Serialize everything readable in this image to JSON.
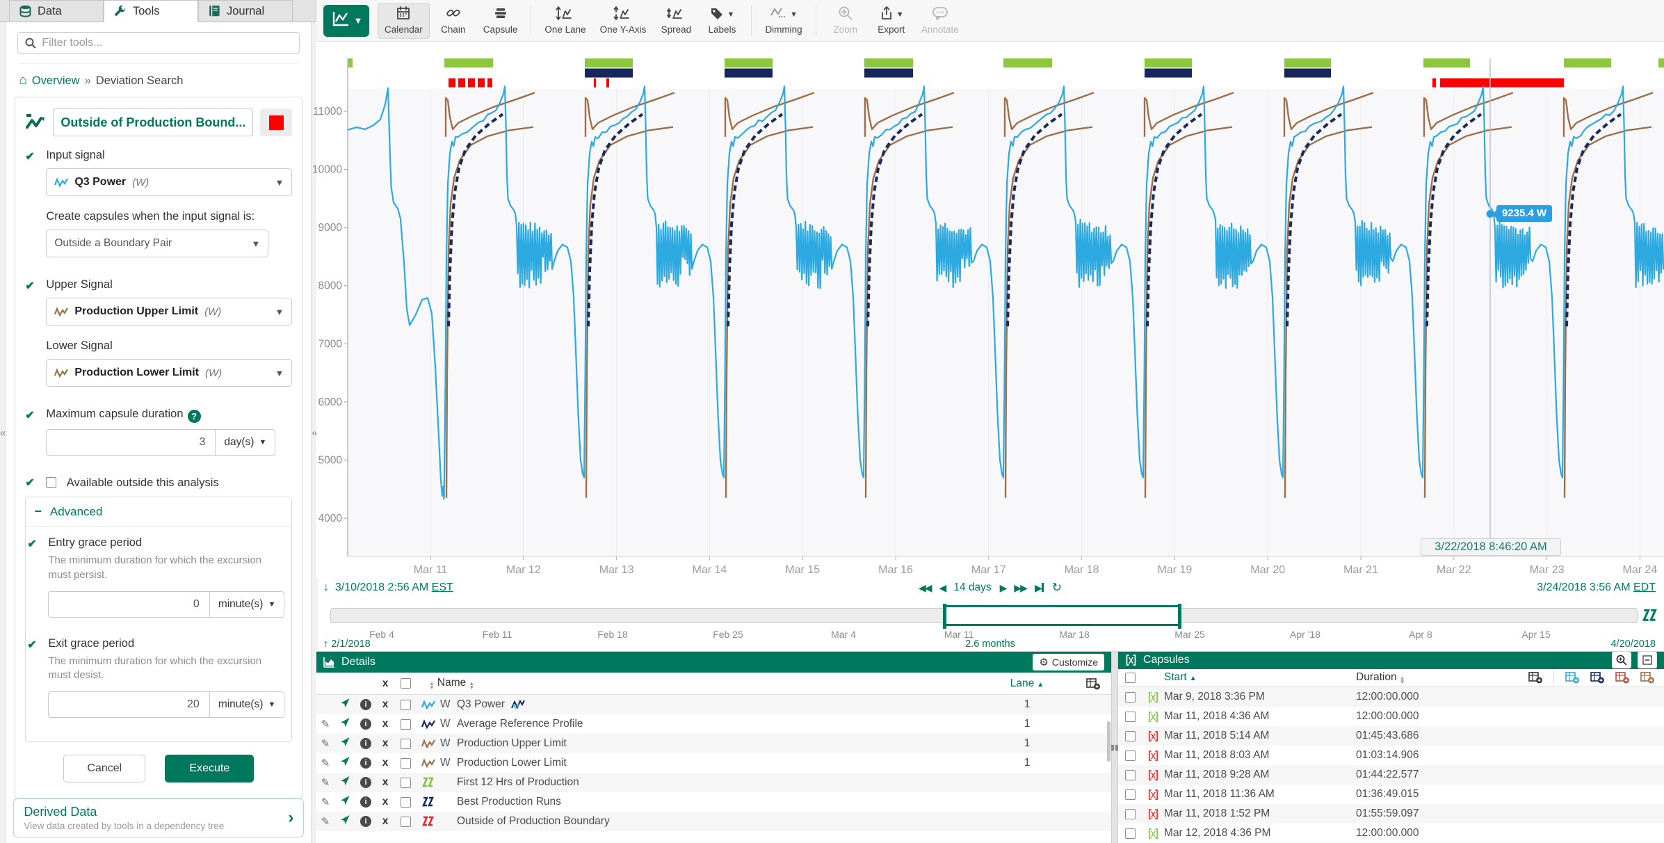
{
  "sidebar": {
    "tabs": [
      {
        "label": "Data",
        "icon": "database-icon"
      },
      {
        "label": "Tools",
        "icon": "wrench-icon"
      },
      {
        "label": "Journal",
        "icon": "journal-icon"
      }
    ],
    "filter_placeholder": "Filter tools...",
    "breadcrumb": {
      "link": "Overview",
      "separator": "»",
      "current": "Deviation Search"
    },
    "tool": {
      "title": "Outside of Production Bound...",
      "color_swatch": "#ff0000",
      "input_signal": {
        "label": "Input signal",
        "value": "Q3 Power",
        "unit": "(W)",
        "color": "#2AA9E0"
      },
      "condition": {
        "label": "Create capsules when the input signal is:",
        "value": "Outside a Boundary Pair"
      },
      "upper_signal": {
        "label": "Upper Signal",
        "value": "Production Upper Limit",
        "unit": "(W)",
        "color": "#9C6F49"
      },
      "lower_signal": {
        "label": "Lower Signal",
        "value": "Production Lower Limit",
        "unit": "(W)",
        "color": "#9C6F49"
      },
      "max_duration": {
        "label": "Maximum capsule duration",
        "value": "3",
        "unit": "day(s)"
      },
      "available_outside_label": "Available outside this analysis",
      "advanced": {
        "label": "Advanced",
        "entry_grace": {
          "label": "Entry grace period",
          "description": "The minimum duration for which the excursion must persist.",
          "value": "0",
          "unit": "minute(s)"
        },
        "exit_grace": {
          "label": "Exit grace period",
          "description": "The minimum duration for which the excursion must desist.",
          "value": "20",
          "unit": "minute(s)"
        }
      },
      "cancel_label": "Cancel",
      "execute_label": "Execute"
    },
    "derived_data": {
      "title": "Derived Data",
      "subtitle": "View data created by tools in a dependency tree"
    }
  },
  "toolbar": {
    "buttons": [
      {
        "label": "Calendar",
        "icon": "calendar",
        "active": true
      },
      {
        "label": "Chain",
        "icon": "chain"
      },
      {
        "label": "Capsule",
        "icon": "capsule"
      },
      {
        "sep": true
      },
      {
        "label": "One Lane",
        "icon": "onelane"
      },
      {
        "label": "One Y-Axis",
        "icon": "oneyaxis"
      },
      {
        "label": "Spread",
        "icon": "spread"
      },
      {
        "label": "Labels",
        "icon": "labels",
        "caret": true
      },
      {
        "sep": true
      },
      {
        "label": "Dimming",
        "icon": "dimming",
        "caret": true
      },
      {
        "sep": true
      },
      {
        "label": "Zoom",
        "icon": "zoom",
        "disabled": true
      },
      {
        "label": "Export",
        "icon": "export",
        "caret": true
      },
      {
        "label": "Annotate",
        "icon": "annotate",
        "disabled": true
      }
    ]
  },
  "chart": {
    "y_ticks": [
      "11000",
      "10000",
      "9000",
      "8000",
      "7000",
      "6000",
      "5000",
      "4000"
    ],
    "x_ticks": [
      "Mar 11",
      "Mar 12",
      "Mar 13",
      "Mar 14",
      "Mar 15",
      "Mar 16",
      "Mar 17",
      "Mar 18",
      "Mar 19",
      "Mar 20",
      "Mar 21",
      "Mar 22",
      "Mar 23",
      "Mar 24"
    ],
    "cursor": {
      "value_label": "9235.4 W",
      "timestamp": "3/22/2018 8:46:20 AM"
    },
    "series_colors": {
      "q3_power": "#2BA9E0",
      "average_reference_profile": "#182A5E",
      "production_limits": "#9C6F49"
    },
    "capsule_lanes": {
      "green": [
        [
          46,
          52
        ],
        [
          184,
          254
        ],
        [
          386,
          455
        ],
        [
          587,
          656
        ],
        [
          788,
          858
        ],
        [
          988,
          1058
        ],
        [
          1191,
          1259
        ],
        [
          1392,
          1459
        ],
        [
          1592,
          1659
        ],
        [
          1794,
          1862
        ],
        [
          1930,
          1938
        ]
      ],
      "navy": [
        [
          386,
          455
        ],
        [
          587,
          656
        ],
        [
          788,
          858
        ],
        [
          1191,
          1259
        ],
        [
          1392,
          1459
        ]
      ],
      "red": [
        [
          190,
          200
        ],
        [
          204,
          214
        ],
        [
          218,
          228
        ],
        [
          232,
          242
        ],
        [
          246,
          253
        ],
        [
          399,
          402
        ],
        [
          417,
          421
        ],
        [
          1605,
          1610
        ],
        [
          1616,
          1794
        ]
      ],
      "colors": {
        "green": "#8DC63F",
        "navy": "#16275C",
        "red": "#FF0000"
      }
    }
  },
  "range": {
    "start": "3/10/2018 2:56 AM",
    "start_tz": "EST",
    "duration": "14 days",
    "end": "3/24/2018 3:56 AM",
    "end_tz": "EDT"
  },
  "scrubber": {
    "ticks": [
      "Feb 4",
      "Feb 11",
      "Feb 18",
      "Feb 25",
      "Mar 4",
      "Mar 11",
      "Mar 18",
      "Mar 25",
      "Apr '18",
      "Apr 8",
      "Apr 15"
    ],
    "start": "2/1/2018",
    "span": "2.6 months",
    "end": "4/20/2018"
  },
  "details": {
    "title": "Details",
    "customize_label": "Customize",
    "columns": {
      "x": "x",
      "name": "Name",
      "lane": "Lane"
    },
    "rows": [
      {
        "edit": false,
        "icon": "signal",
        "color": "#2AA9E0",
        "unit": "W",
        "name": "Q3 Power",
        "tool_icon": true,
        "lane": "1"
      },
      {
        "edit": true,
        "icon": "signal",
        "color": "#16275C",
        "unit": "W",
        "name": "Average Reference Profile",
        "lane": "1"
      },
      {
        "edit": true,
        "icon": "signal",
        "color": "#9C6F49",
        "unit": "W",
        "name": "Production Upper Limit",
        "lane": "1"
      },
      {
        "edit": true,
        "icon": "signal",
        "color": "#9C6F49",
        "unit": "W",
        "name": "Production Lower Limit",
        "lane": "1"
      },
      {
        "edit": true,
        "icon": "condition",
        "color": "#7DC242",
        "unit": "",
        "name": "First 12 Hrs of Production",
        "lane": ""
      },
      {
        "edit": true,
        "icon": "condition",
        "color": "#16275C",
        "unit": "",
        "name": "Best Production Runs",
        "lane": ""
      },
      {
        "edit": true,
        "icon": "condition",
        "color": "#E8232A",
        "unit": "",
        "name": "Outside of Production Boundary",
        "lane": ""
      }
    ]
  },
  "capsules": {
    "title": "Capsules",
    "columns": {
      "start": "Start",
      "duration": "Duration"
    },
    "add_column_colors": [
      "#333333",
      "#2AA9E0",
      "#16275C",
      "#BC4B3C",
      "#9C6F49"
    ],
    "rows": [
      {
        "color": "#7DC242",
        "start": "Mar 9, 2018 3:36 PM",
        "duration": "12:00:00.000"
      },
      {
        "color": "#7DC242",
        "start": "Mar 11, 2018 4:36 AM",
        "duration": "12:00:00.000"
      },
      {
        "color": "#E8232A",
        "start": "Mar 11, 2018 5:14 AM",
        "duration": "01:45:43.686"
      },
      {
        "color": "#E8232A",
        "start": "Mar 11, 2018 8:03 AM",
        "duration": "01:03:14.906"
      },
      {
        "color": "#E8232A",
        "start": "Mar 11, 2018 9:28 AM",
        "duration": "01:44:22.577"
      },
      {
        "color": "#E8232A",
        "start": "Mar 11, 2018 11:36 AM",
        "duration": "01:36:49.015"
      },
      {
        "color": "#E8232A",
        "start": "Mar 11, 2018 1:52 PM",
        "duration": "01:55:59.097"
      },
      {
        "color": "#7DC242",
        "start": "Mar 12, 2018 4:36 PM",
        "duration": "12:00:00.000"
      }
    ]
  }
}
